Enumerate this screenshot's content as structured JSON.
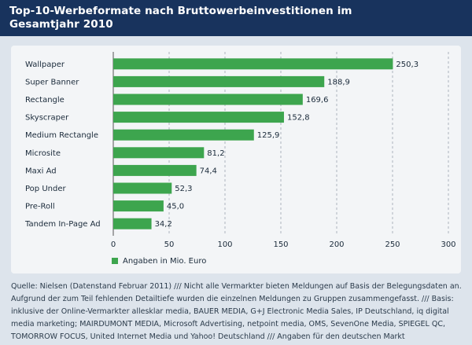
{
  "title_line1": "Top-10-Werbeformate nach Bruttowerbeinvestitionen im",
  "title_line2": "Gesamtjahr 2010",
  "legend_label": "Angaben in Mio. Euro",
  "bar_color": "#3da54e",
  "header_color": "#18335d",
  "source_lines": [
    "Quelle: Nielsen (Datenstand Februar 2011) /// Nicht alle Vermarkter bieten Meldungen auf Basis der Belegungsdaten an.",
    "Aufgrund der zum Teil fehlenden Detailtiefe wurden die einzelnen Meldungen zu Gruppen zusammengefasst. /// Basis:",
    "inklusive der Online-Vermarkter allesklar media, BAUER MEDIA, G+J Electronic Media Sales, IP Deutschland, iq digital",
    "media marketing; MAIRDUMONT MEDIA, Microsoft Advertising, netpoint media, OMS, SevenOne Media, SPIEGEL QC,",
    "TOMORROW FOCUS, United Internet Media und Yahoo! Deutschland /// Angaben für den deutschen Markt"
  ],
  "chart_data": {
    "type": "bar",
    "orientation": "horizontal",
    "categories": [
      "Wallpaper",
      "Super Banner",
      "Rectangle",
      "Skyscraper",
      "Medium Rectangle",
      "Microsite",
      "Maxi Ad",
      "Pop Under",
      "Pre-Roll",
      "Tandem In-Page Ad"
    ],
    "values": [
      250.3,
      188.9,
      169.6,
      152.8,
      125.9,
      81.2,
      74.4,
      52.3,
      45.0,
      34.2
    ],
    "value_labels": [
      "250,3",
      "188,9",
      "169,6",
      "152,8",
      "125,9",
      "81,2",
      "74,4",
      "52,3",
      "45,0",
      "34,2"
    ],
    "xticks": [
      "0",
      "50",
      "100",
      "150",
      "200",
      "250",
      "300"
    ],
    "xlim": [
      0,
      300
    ],
    "grid": true,
    "legend": "bottom-left"
  }
}
